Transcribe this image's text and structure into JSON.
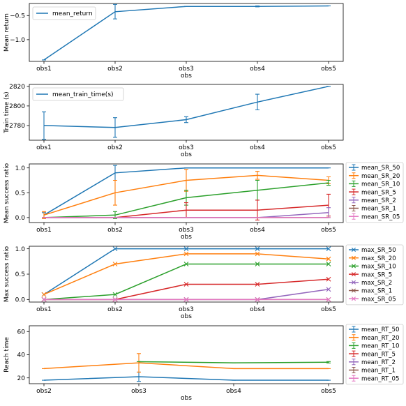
{
  "chart_data": [
    {
      "type": "line",
      "categories": [
        "obs1",
        "obs2",
        "obs3",
        "obs4",
        "obs5"
      ],
      "xlabel": "obs",
      "ylabel": "Mean return",
      "ylim": [
        -1.45,
        -0.25
      ],
      "yticks": [
        -1.0,
        -0.5
      ],
      "ytick_labels": [
        "−1.0",
        "−0.5"
      ],
      "legend": "upper-left-inside",
      "markers": "errorbar",
      "series": [
        {
          "name": "mean_return",
          "color": "#1f77b4",
          "values": [
            -1.42,
            -0.42,
            -0.31,
            -0.31,
            -0.3
          ],
          "err": [
            0.0,
            0.15,
            0.0,
            0.01,
            0.0
          ]
        }
      ]
    },
    {
      "type": "line",
      "categories": [
        "obs1",
        "obs2",
        "obs3",
        "obs4",
        "obs5"
      ],
      "xlabel": "obs",
      "ylabel": "Train time (s)",
      "ylim": [
        2765,
        2822
      ],
      "yticks": [
        2780,
        2800,
        2820
      ],
      "ytick_labels": [
        "2780",
        "2800",
        "2820"
      ],
      "legend": "upper-left-inside",
      "markers": "errorbar",
      "series": [
        {
          "name": "mean_train_time(s)",
          "color": "#1f77b4",
          "values": [
            2780,
            2778,
            2786,
            2804,
            2820
          ],
          "err": [
            14,
            10,
            3,
            8,
            0
          ]
        }
      ]
    },
    {
      "type": "line",
      "categories": [
        "obs1",
        "obs2",
        "obs3",
        "obs4",
        "obs5"
      ],
      "xlabel": "obs",
      "ylabel": "Mean success ratio",
      "ylim": [
        -0.1,
        1.08
      ],
      "yticks": [
        0.0,
        0.5,
        1.0
      ],
      "ytick_labels": [
        "0.0",
        "0.5",
        "1.0"
      ],
      "legend": "outside-right",
      "markers": "errorbar",
      "series": [
        {
          "name": "mean_SR_50",
          "color": "#1f77b4",
          "values": [
            0.05,
            0.9,
            1.0,
            1.0,
            1.0
          ],
          "err": [
            0.05,
            0.15,
            0.0,
            0.0,
            0.0
          ]
        },
        {
          "name": "mean_SR_20",
          "color": "#ff7f0e",
          "values": [
            0.05,
            0.5,
            0.75,
            0.85,
            0.75
          ],
          "err": [
            0.07,
            0.25,
            0.22,
            0.08,
            0.07
          ]
        },
        {
          "name": "mean_SR_10",
          "color": "#2ca02c",
          "values": [
            0.0,
            0.05,
            0.4,
            0.55,
            0.7
          ],
          "err": [
            0.0,
            0.07,
            0.15,
            0.2,
            0.05
          ]
        },
        {
          "name": "mean_SR_5",
          "color": "#d62728",
          "values": [
            0.0,
            0.0,
            0.15,
            0.15,
            0.25
          ],
          "err": [
            0.0,
            0.0,
            0.15,
            0.2,
            0.22
          ]
        },
        {
          "name": "mean_SR_2",
          "color": "#9467bd",
          "values": [
            0.0,
            0.0,
            0.0,
            0.0,
            0.1
          ],
          "err": [
            0.0,
            0.0,
            0.0,
            0.0,
            0.1
          ]
        },
        {
          "name": "mean_SR_1",
          "color": "#8c564b",
          "values": [
            0.0,
            0.0,
            0.0,
            0.0,
            0.0
          ],
          "err": [
            0.0,
            0.0,
            0.0,
            0.0,
            0.0
          ]
        },
        {
          "name": "mean_SR_05",
          "color": "#e377c2",
          "values": [
            0.0,
            0.0,
            0.0,
            0.0,
            0.0
          ],
          "err": [
            0.0,
            0.0,
            0.0,
            0.0,
            0.0
          ]
        }
      ]
    },
    {
      "type": "line",
      "categories": [
        "obs1",
        "obs2",
        "obs3",
        "obs4",
        "obs5"
      ],
      "xlabel": "obs",
      "ylabel": "Max success ratio",
      "ylim": [
        -0.05,
        1.05
      ],
      "yticks": [
        0.0,
        0.5,
        1.0
      ],
      "ytick_labels": [
        "0.0",
        "0.5",
        "1.0"
      ],
      "legend": "outside-right",
      "markers": "x",
      "series": [
        {
          "name": "max_SR_50",
          "color": "#1f77b4",
          "values": [
            0.1,
            1.0,
            1.0,
            1.0,
            1.0
          ]
        },
        {
          "name": "max_SR_20",
          "color": "#ff7f0e",
          "values": [
            0.1,
            0.7,
            0.9,
            0.9,
            0.8
          ]
        },
        {
          "name": "max_SR_10",
          "color": "#2ca02c",
          "values": [
            0.0,
            0.1,
            0.7,
            0.7,
            0.7
          ]
        },
        {
          "name": "max_SR_5",
          "color": "#d62728",
          "values": [
            0.0,
            0.0,
            0.3,
            0.3,
            0.4
          ]
        },
        {
          "name": "max_SR_2",
          "color": "#9467bd",
          "values": [
            0.0,
            0.0,
            0.0,
            0.0,
            0.2
          ]
        },
        {
          "name": "max_SR_1",
          "color": "#8c564b",
          "values": [
            0.0,
            0.0,
            0.0,
            0.0,
            0.0
          ]
        },
        {
          "name": "max_SR_05",
          "color": "#e377c2",
          "values": [
            0.0,
            0.0,
            0.0,
            0.0,
            0.0
          ]
        }
      ]
    },
    {
      "type": "line",
      "categories": [
        "obs2",
        "obs3",
        "obs4",
        "obs5"
      ],
      "xlabel": "obs",
      "ylabel": "Reach time",
      "ylim": [
        15,
        65
      ],
      "yticks": [
        20,
        40,
        60
      ],
      "ytick_labels": [
        "20",
        "40",
        "60"
      ],
      "legend": "outside-right",
      "markers": "errorbar",
      "series": [
        {
          "name": "mean_RT_50",
          "color": "#1f77b4",
          "values": [
            18,
            21,
            18,
            18
          ],
          "err": [
            0,
            4,
            0,
            0
          ]
        },
        {
          "name": "mean_RT_20",
          "color": "#ff7f0e",
          "values": [
            28,
            33,
            28,
            28
          ],
          "err": [
            0,
            8,
            0,
            0
          ]
        },
        {
          "name": "mean_RT_10",
          "color": "#2ca02c",
          "values": [
            null,
            34,
            33,
            33.5
          ],
          "err": [
            0,
            0,
            0,
            0.6
          ]
        },
        {
          "name": "mean_RT_5",
          "color": "#d62728",
          "values": [
            null,
            null,
            null,
            null
          ],
          "err": [
            0,
            0,
            0,
            0
          ]
        },
        {
          "name": "mean_RT_2",
          "color": "#9467bd",
          "values": [
            null,
            null,
            null,
            null
          ],
          "err": [
            0,
            0,
            0,
            0
          ]
        },
        {
          "name": "mean_RT_1",
          "color": "#8c564b",
          "values": [
            null,
            null,
            null,
            null
          ],
          "err": [
            0,
            0,
            0,
            0
          ]
        },
        {
          "name": "mean_RT_05",
          "color": "#e377c2",
          "values": [
            null,
            null,
            null,
            null
          ],
          "err": [
            0,
            0,
            0,
            0
          ]
        }
      ]
    }
  ]
}
